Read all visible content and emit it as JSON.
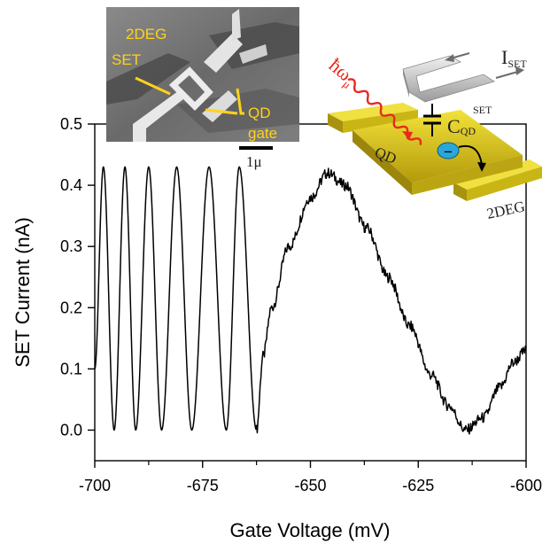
{
  "chart_data": {
    "type": "line",
    "xlabel": "Gate Voltage (mV)",
    "ylabel": "SET Current (nA)",
    "xlim": [
      -700,
      -600
    ],
    "ylim": [
      -0.05,
      0.5
    ],
    "xticks": [
      -700,
      -675,
      -650,
      -625,
      -600
    ],
    "xtick_labels": [
      "-700",
      "-675",
      "-650",
      "-625",
      "-600"
    ],
    "yticks": [
      0.0,
      0.1,
      0.2,
      0.3,
      0.4,
      0.5
    ],
    "ytick_labels": [
      "0.0",
      "0.1",
      "0.2",
      "0.3",
      "0.4",
      "0.5"
    ],
    "grid": false,
    "series": [
      {
        "color": "#000000",
        "oscillation_peaks_x": [
          -698,
          -693,
          -687.5,
          -681,
          -673.5,
          -666.5
        ],
        "oscillation_troughs_x": [
          -695.5,
          -690.5,
          -684.5,
          -677.5,
          -669.5,
          -662.5
        ],
        "oscillation_peak_value": 0.43,
        "oscillation_trough_value": 0.0,
        "x": [
          -700,
          -698,
          -695.5,
          -693,
          -690.5,
          -687.5,
          -684.5,
          -681,
          -677.5,
          -673.5,
          -669.5,
          -666.5,
          -662.5,
          -661,
          -659,
          -655,
          -650,
          -646,
          -642,
          -637,
          -632,
          -627,
          -622,
          -618,
          -614,
          -610,
          -606,
          -603,
          -600
        ],
        "y": [
          0.1,
          0.43,
          0.0,
          0.43,
          0.0,
          0.43,
          0.0,
          0.43,
          0.0,
          0.43,
          0.0,
          0.43,
          0.0,
          0.12,
          0.2,
          0.3,
          0.38,
          0.42,
          0.4,
          0.33,
          0.25,
          0.17,
          0.09,
          0.04,
          0.0,
          0.02,
          0.07,
          0.11,
          0.13
        ]
      }
    ]
  },
  "inset_sem": {
    "labels": {
      "twodeg": "2DEG",
      "set": "SET",
      "qd": "QD",
      "gate": "gate"
    },
    "scale_bar_label": "1μ"
  },
  "inset_schematic": {
    "photon_label": "ħω",
    "photon_subscript": "μ",
    "current_label": "I",
    "current_subscript": "SET",
    "capacitance_label": "C",
    "capacitance_subscript": "QD",
    "capacitance_superscript": "SET",
    "qd_label": "QD",
    "twodeg_label": "2DEG",
    "electron_symbol": "−"
  },
  "colors": {
    "trace": "#000000",
    "sem_label": "#ffd21a",
    "photon": "#e8291c",
    "gold": "#d9c414",
    "electrode": "#c9c9c9",
    "electron": "#2aa6d8"
  }
}
